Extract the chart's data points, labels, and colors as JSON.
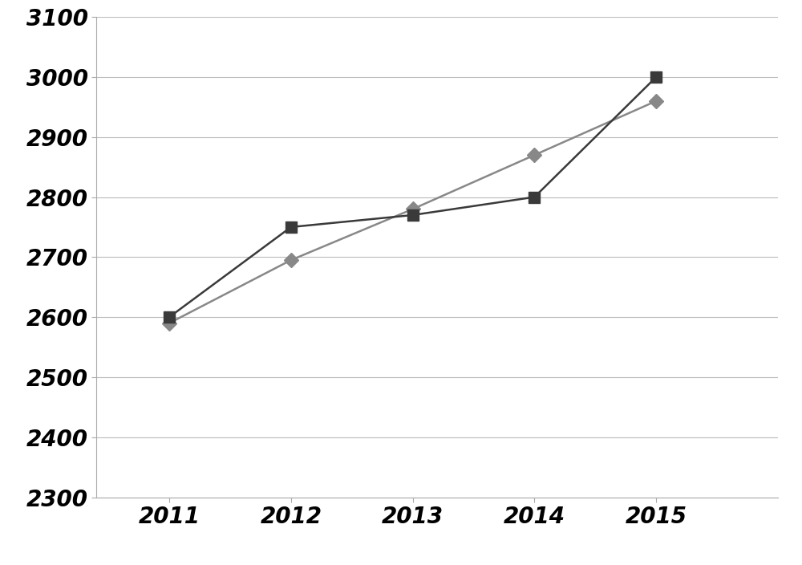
{
  "years": [
    2011,
    2012,
    2013,
    2014,
    2015
  ],
  "series1_values": [
    2600,
    2750,
    2770,
    2800,
    3000
  ],
  "series2_values": [
    2590,
    2695,
    2780,
    2870,
    2960
  ],
  "series1_color": "#3a3a3a",
  "series2_color": "#888888",
  "ylim_min": 2300,
  "ylim_max": 3100,
  "ytick_step": 100,
  "background_color": "#ffffff",
  "grid_color": "#bbbbbb",
  "marker1": "s",
  "marker2": "D",
  "marker_size1": 10,
  "marker_size2": 9,
  "linewidth": 1.8,
  "tick_fontsize": 20,
  "xlim_left": 2010.4,
  "xlim_right": 2016.0
}
